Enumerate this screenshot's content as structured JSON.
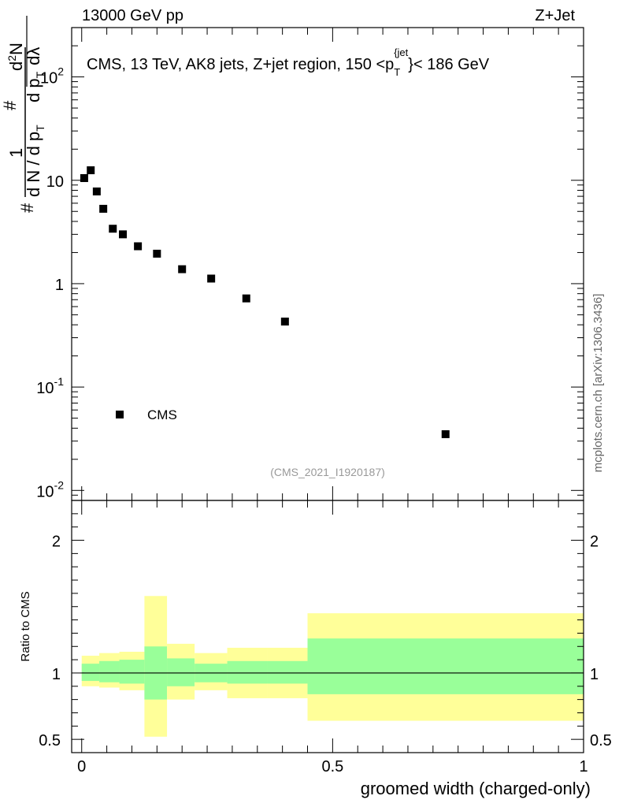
{
  "header": {
    "left": "13000 GeV pp",
    "right": "Z+Jet"
  },
  "side_label": "mcplots.cern.ch [arXiv:1306.3436]",
  "analysis_id": "(CMS_2021_I1920187)",
  "colors": {
    "band_outer": "#ffff99",
    "band_inner": "#99ff99",
    "points": "#000000",
    "id_text": "#999999"
  },
  "chart_data": [
    {
      "type": "scatter",
      "panel": "main",
      "title": "CMS, 13 TeV, AK8 jets, Z+jet region, 150 <p_T^{jet}< 186 GeV",
      "title_parts": {
        "prefix": "CMS, 13 TeV, AK8 jets, Z+jet region, 150 <p",
        "sub": "T",
        "sup": "{jet",
        "suffix": "}< 186 GeV"
      },
      "ylabel_parts": {
        "hash_left": "#",
        "one": "1",
        "dn": "d N / d p",
        "dn_sub": "T",
        "hash_mid": "#",
        "d2n": "d",
        "d2n_sup": "2",
        "d2n_tail": "N",
        "dpt": "d p",
        "dpt_sub": "T",
        "dl": "dλ"
      },
      "yscale": "log",
      "ylim": [
        0.008,
        300
      ],
      "xlim": [
        -0.02,
        1.0
      ],
      "ytick_labels": [
        {
          "value": 0.01,
          "base": "10",
          "exp": "-2"
        },
        {
          "value": 0.1,
          "base": "10",
          "exp": "-1"
        },
        {
          "value": 1,
          "base": "1",
          "exp": ""
        },
        {
          "value": 10,
          "base": "10",
          "exp": ""
        },
        {
          "value": 100,
          "base": "10",
          "exp": "2"
        }
      ],
      "legend": {
        "label": "CMS",
        "placement": "bottom-left"
      },
      "series": [
        {
          "name": "CMS",
          "x": [
            0.005,
            0.018,
            0.03,
            0.043,
            0.062,
            0.082,
            0.112,
            0.15,
            0.2,
            0.258,
            0.328,
            0.405,
            0.725
          ],
          "y": [
            10.5,
            12.5,
            7.8,
            5.3,
            3.4,
            3.0,
            2.3,
            1.95,
            1.38,
            1.12,
            0.72,
            0.43,
            0.035
          ]
        }
      ]
    },
    {
      "type": "area",
      "panel": "ratio",
      "ylabel": "Ratio to CMS",
      "xlabel": "groomed width (charged-only)",
      "ylim": [
        0.4,
        2.3
      ],
      "xlim": [
        -0.02,
        1.0
      ],
      "ytick_labels": [
        "0.5",
        "1",
        "2"
      ],
      "xtick_labels": [
        "0",
        "0.5",
        "1"
      ],
      "ytick_values": [
        0.5,
        1,
        2
      ],
      "xtick_values": [
        0,
        0.5,
        1
      ],
      "reference": 1,
      "bins": [
        {
          "lo": 0.0,
          "hi": 0.035,
          "inner": [
            0.94,
            1.07
          ],
          "outer": [
            0.9,
            1.13
          ]
        },
        {
          "lo": 0.035,
          "hi": 0.075,
          "inner": [
            0.93,
            1.09
          ],
          "outer": [
            0.89,
            1.15
          ]
        },
        {
          "lo": 0.075,
          "hi": 0.125,
          "inner": [
            0.92,
            1.1
          ],
          "outer": [
            0.87,
            1.16
          ]
        },
        {
          "lo": 0.125,
          "hi": 0.17,
          "inner": [
            0.8,
            1.2
          ],
          "outer": [
            0.52,
            1.58
          ]
        },
        {
          "lo": 0.17,
          "hi": 0.225,
          "inner": [
            0.9,
            1.11
          ],
          "outer": [
            0.8,
            1.22
          ]
        },
        {
          "lo": 0.225,
          "hi": 0.29,
          "inner": [
            0.93,
            1.07
          ],
          "outer": [
            0.87,
            1.15
          ]
        },
        {
          "lo": 0.29,
          "hi": 0.37,
          "inner": [
            0.92,
            1.09
          ],
          "outer": [
            0.81,
            1.19
          ]
        },
        {
          "lo": 0.37,
          "hi": 0.45,
          "inner": [
            0.92,
            1.09
          ],
          "outer": [
            0.81,
            1.19
          ]
        },
        {
          "lo": 0.45,
          "hi": 1.0,
          "inner": [
            0.84,
            1.26
          ],
          "outer": [
            0.64,
            1.45
          ]
        }
      ]
    }
  ]
}
